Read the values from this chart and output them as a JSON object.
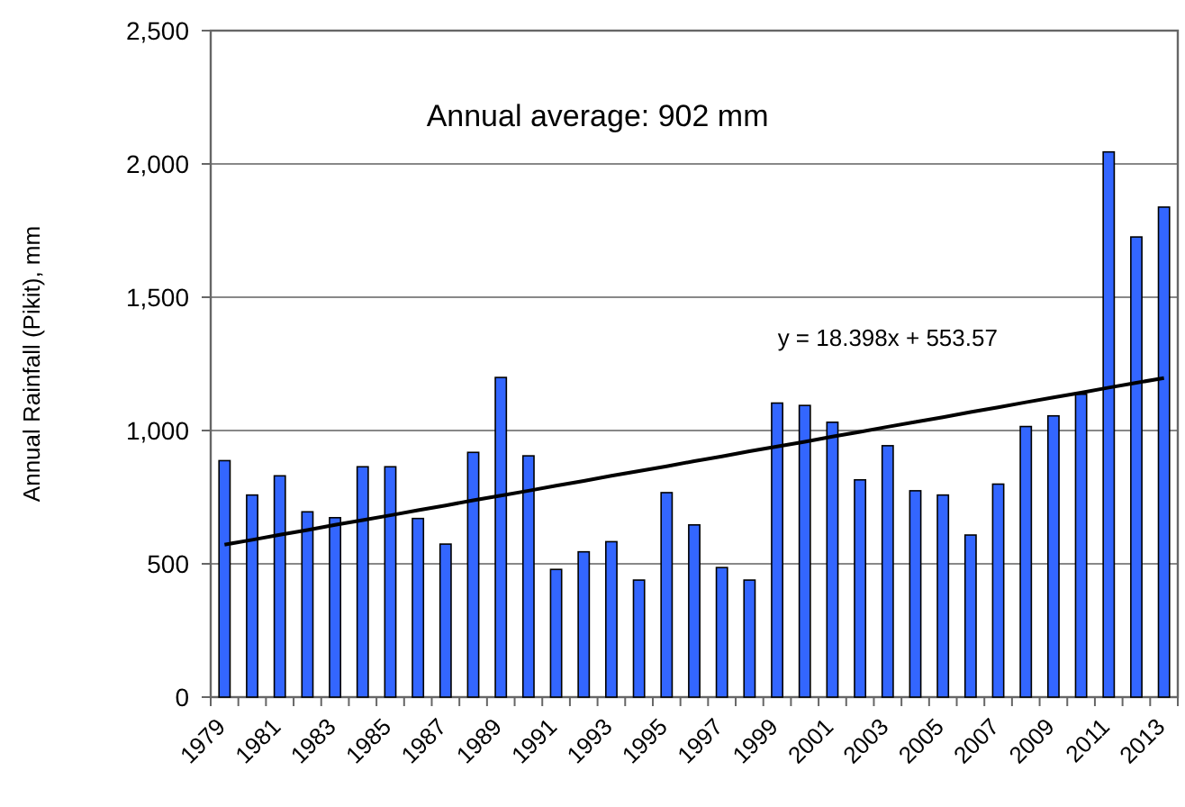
{
  "chart_data": {
    "type": "bar",
    "ylabel": "Annual Rainfall (Pikit), mm",
    "categories": [
      "1979",
      null,
      "1981",
      null,
      "1983",
      null,
      "1985",
      null,
      "1987",
      null,
      "1989",
      null,
      "1991",
      null,
      "1993",
      null,
      "1995",
      null,
      "1997",
      null,
      "1999",
      null,
      "2001",
      null,
      "2003",
      null,
      "2005",
      null,
      "2007",
      null,
      "2009",
      null,
      "2011",
      null,
      "2013"
    ],
    "series": [
      {
        "color": "#3366ff",
        "values": [
          887,
          758,
          830,
          695,
          673,
          864,
          864,
          670,
          574,
          918,
          1199,
          905,
          479,
          545,
          583,
          439,
          767,
          646,
          486,
          439,
          1103,
          1094,
          1031,
          815,
          943,
          774,
          758,
          608,
          799,
          1015,
          1055,
          1136,
          2045,
          1726,
          1838
        ]
      },
      {
        "type": "line",
        "color": "#000000",
        "values": [
          572,
          590,
          609,
          627,
          646,
          664,
          682,
          701,
          719,
          738,
          756,
          774,
          793,
          811,
          830,
          848,
          866,
          885,
          903,
          922,
          940,
          958,
          977,
          995,
          1014,
          1032,
          1050,
          1069,
          1087,
          1106,
          1124,
          1142,
          1161,
          1179,
          1197
        ]
      }
    ],
    "ylim": [
      0,
      2500
    ],
    "yticks": [
      0,
      500,
      {
        "value": 1000,
        "label": "1,000"
      },
      {
        "value": 1500,
        "label": "1,500"
      },
      {
        "value": 2000,
        "label": "2,000"
      },
      {
        "value": 2500,
        "label": "2,500"
      }
    ],
    "grid": "y",
    "annotations": [
      "Annual average: 902 mm",
      "y = 18.398x + 553.57"
    ]
  }
}
